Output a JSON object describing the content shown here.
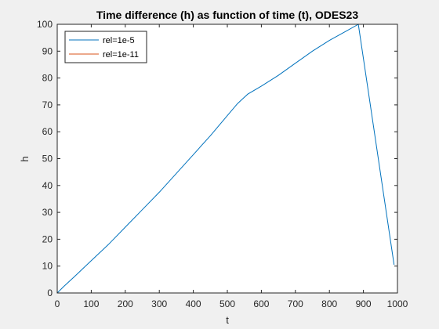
{
  "chart_data": {
    "type": "line",
    "title": "Time difference (h) as function of time (t), ODES23",
    "xlabel": "t",
    "ylabel": "h",
    "xlim": [
      0,
      1000
    ],
    "ylim": [
      0,
      100
    ],
    "xticks": [
      0,
      100,
      200,
      300,
      400,
      500,
      600,
      700,
      800,
      900,
      1000
    ],
    "yticks": [
      0,
      10,
      20,
      30,
      40,
      50,
      60,
      70,
      80,
      90,
      100
    ],
    "grid": false,
    "legend_position": "top-left",
    "series": [
      {
        "name": "rel=1e-5",
        "color": "#0072BD",
        "x": [
          0,
          20,
          50,
          100,
          150,
          200,
          250,
          300,
          350,
          400,
          450,
          500,
          530,
          560,
          600,
          650,
          700,
          750,
          800,
          850,
          885,
          990
        ],
        "y": [
          0,
          2.5,
          6,
          12,
          18,
          24.5,
          31,
          37.5,
          44.5,
          51.5,
          58.5,
          66,
          70.5,
          74,
          77,
          81,
          85.5,
          90,
          94,
          97.5,
          100,
          10.5
        ]
      },
      {
        "name": "rel=1e-11",
        "color": "#D95319",
        "x": [
          0,
          990
        ],
        "y": [
          0,
          0
        ]
      }
    ]
  }
}
